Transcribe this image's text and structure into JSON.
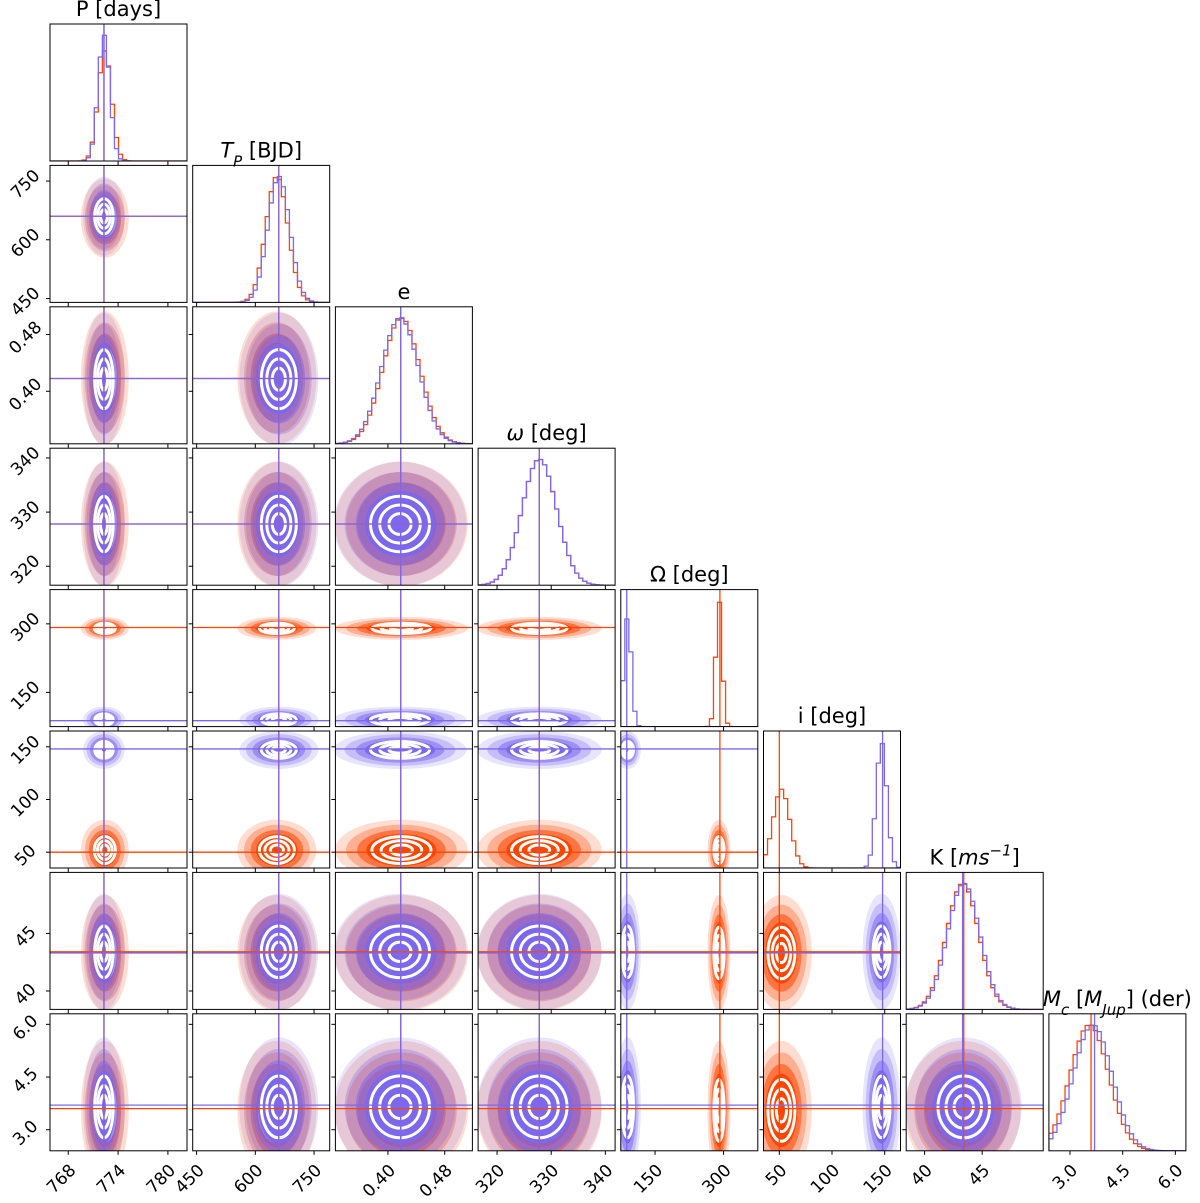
{
  "chart_data": {
    "type": "corner",
    "params": [
      {
        "title": [
          {
            "text": "P [days]"
          }
        ],
        "lim": [
          765.8,
          782.3
        ],
        "ticks": [
          768,
          774,
          780
        ],
        "samples": [
          {
            "color": "#ff4500",
            "mean": 772.4,
            "sd": 0.8,
            "truth": 772.3
          },
          {
            "color": "#7b68ee",
            "mean": 772.3,
            "sd": 0.7,
            "truth": 772.3
          }
        ]
      },
      {
        "title": [
          {
            "text": "T",
            "style": "italic"
          },
          {
            "text": "P",
            "style": "italic",
            "shift": "sub"
          },
          {
            "text": " [BJD]"
          }
        ],
        "lim": [
          440,
          790
        ],
        "ticks": [
          450,
          600,
          750
        ],
        "samples": [
          {
            "color": "#ff4500",
            "mean": 655,
            "sd": 28,
            "truth": 660
          },
          {
            "color": "#7b68ee",
            "mean": 660,
            "sd": 28,
            "truth": 660
          }
        ]
      },
      {
        "title": [
          {
            "text": "e"
          }
        ],
        "lim": [
          0.326,
          0.519
        ],
        "ticks": [
          {
            "value": 0.4,
            "label": "0.40"
          },
          {
            "value": 0.48,
            "label": "0.48"
          }
        ],
        "samples": [
          {
            "color": "#ff4500",
            "mean": 0.419,
            "sd": 0.026,
            "truth": 0.418
          },
          {
            "color": "#7b68ee",
            "mean": 0.417,
            "sd": 0.026,
            "truth": 0.418
          }
        ]
      },
      {
        "title": [
          {
            "text": "ω",
            "style": "italic"
          },
          {
            "text": " [deg]"
          }
        ],
        "lim": [
          316.5,
          341.8
        ],
        "ticks": [
          320,
          330,
          340
        ],
        "samples": [
          {
            "color": "#ff4500",
            "mean": 327.8,
            "sd": 3.2,
            "truth": 327.8
          },
          {
            "color": "#7b68ee",
            "mean": 327.8,
            "sd": 3.2,
            "truth": 327.8
          }
        ]
      },
      {
        "title": [
          {
            "text": "Ω [deg]"
          }
        ],
        "lim": [
          75,
          375
        ],
        "ticks": [
          150,
          300
        ],
        "samples": [
          {
            "color": "#ff4500",
            "mean": 290,
            "sd": 7,
            "truth": 292
          },
          {
            "color": "#7b68ee",
            "mean": 90,
            "sd": 8,
            "truth": 88
          }
        ]
      },
      {
        "title": [
          {
            "text": "i [deg]"
          }
        ],
        "lim": [
          35,
          165
        ],
        "ticks": [
          50,
          100,
          150
        ],
        "samples": [
          {
            "color": "#ff4500",
            "mean": 52,
            "sd": 8,
            "truth": 50
          },
          {
            "color": "#7b68ee",
            "mean": 147,
            "sd": 5,
            "truth": 148
          }
        ]
      },
      {
        "title": [
          {
            "text": "K ["
          },
          {
            "text": "ms",
            "style": "italic"
          },
          {
            "text": "−1",
            "style": "italic",
            "shift": "sup"
          },
          {
            "text": "]"
          }
        ],
        "lim": [
          38.4,
          50.3
        ],
        "ticks": [
          40,
          45
        ],
        "samples": [
          {
            "color": "#ff4500",
            "mean": 43.3,
            "sd": 1.4,
            "truth": 43.4
          },
          {
            "color": "#7b68ee",
            "mean": 43.4,
            "sd": 1.4,
            "truth": 43.3
          }
        ]
      },
      {
        "title": [
          {
            "text": "M",
            "style": "italic"
          },
          {
            "text": "c",
            "style": "italic",
            "shift": "sub"
          },
          {
            "text": " ["
          },
          {
            "text": "M",
            "style": "italic"
          },
          {
            "text": "Jup",
            "style": "italic",
            "shift": "sub"
          },
          {
            "text": "] (der)"
          }
        ],
        "lim": [
          2.4,
          6.3
        ],
        "ticks": [
          {
            "value": 3,
            "label": "3.0"
          },
          4.5,
          {
            "value": 6,
            "label": "6.0"
          }
        ],
        "samples": [
          {
            "color": "#ff4500",
            "mean": 3.55,
            "sd": 0.55,
            "truth": 3.6
          },
          {
            "color": "#7b68ee",
            "mean": 3.65,
            "sd": 0.55,
            "truth": 3.7
          }
        ]
      }
    ]
  }
}
